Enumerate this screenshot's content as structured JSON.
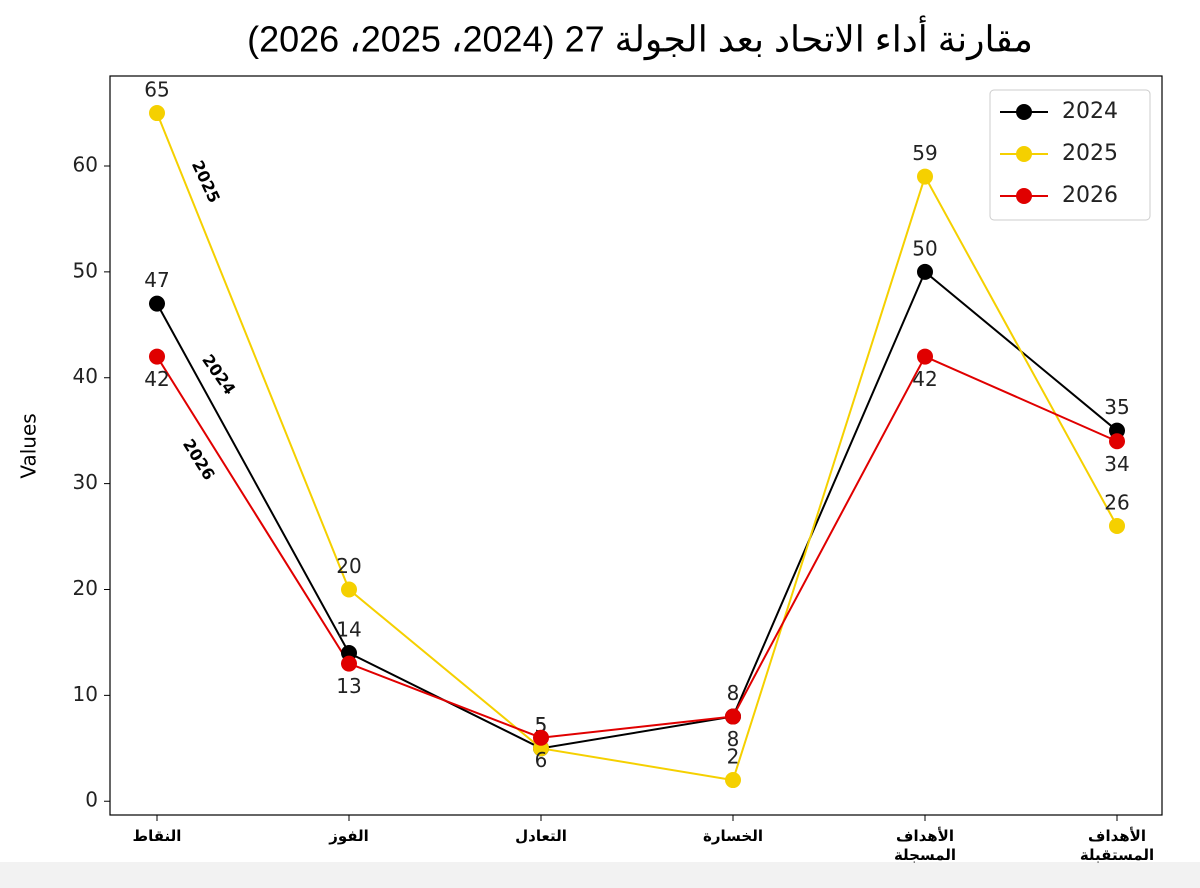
{
  "chart_data": {
    "type": "line",
    "title": "مقارنة أداء الاتحاد بعد الجولة 27 (2024، 2025، 2026)",
    "y_label": "Values",
    "categories": [
      "النقاط",
      "الفوز",
      "التعادل",
      "الخسارة",
      "الأهداف المسجلة",
      "الأهداف المستقبلة"
    ],
    "series": [
      {
        "name": "2024",
        "color": "#000000",
        "values": [
          47,
          14,
          5,
          8,
          50,
          35
        ]
      },
      {
        "name": "2025",
        "color": "#f5d000",
        "values": [
          65,
          20,
          5,
          2,
          59,
          26
        ]
      },
      {
        "name": "2026",
        "color": "#e00000",
        "values": [
          42,
          13,
          6,
          8,
          42,
          34
        ]
      }
    ],
    "annotations": [
      "2025",
      "2024",
      "2026"
    ],
    "ylim": [
      -1.3,
      68.5
    ],
    "yticks": [
      0,
      10,
      20,
      30,
      40,
      50,
      60
    ],
    "legend": "upper right",
    "grid": false
  }
}
